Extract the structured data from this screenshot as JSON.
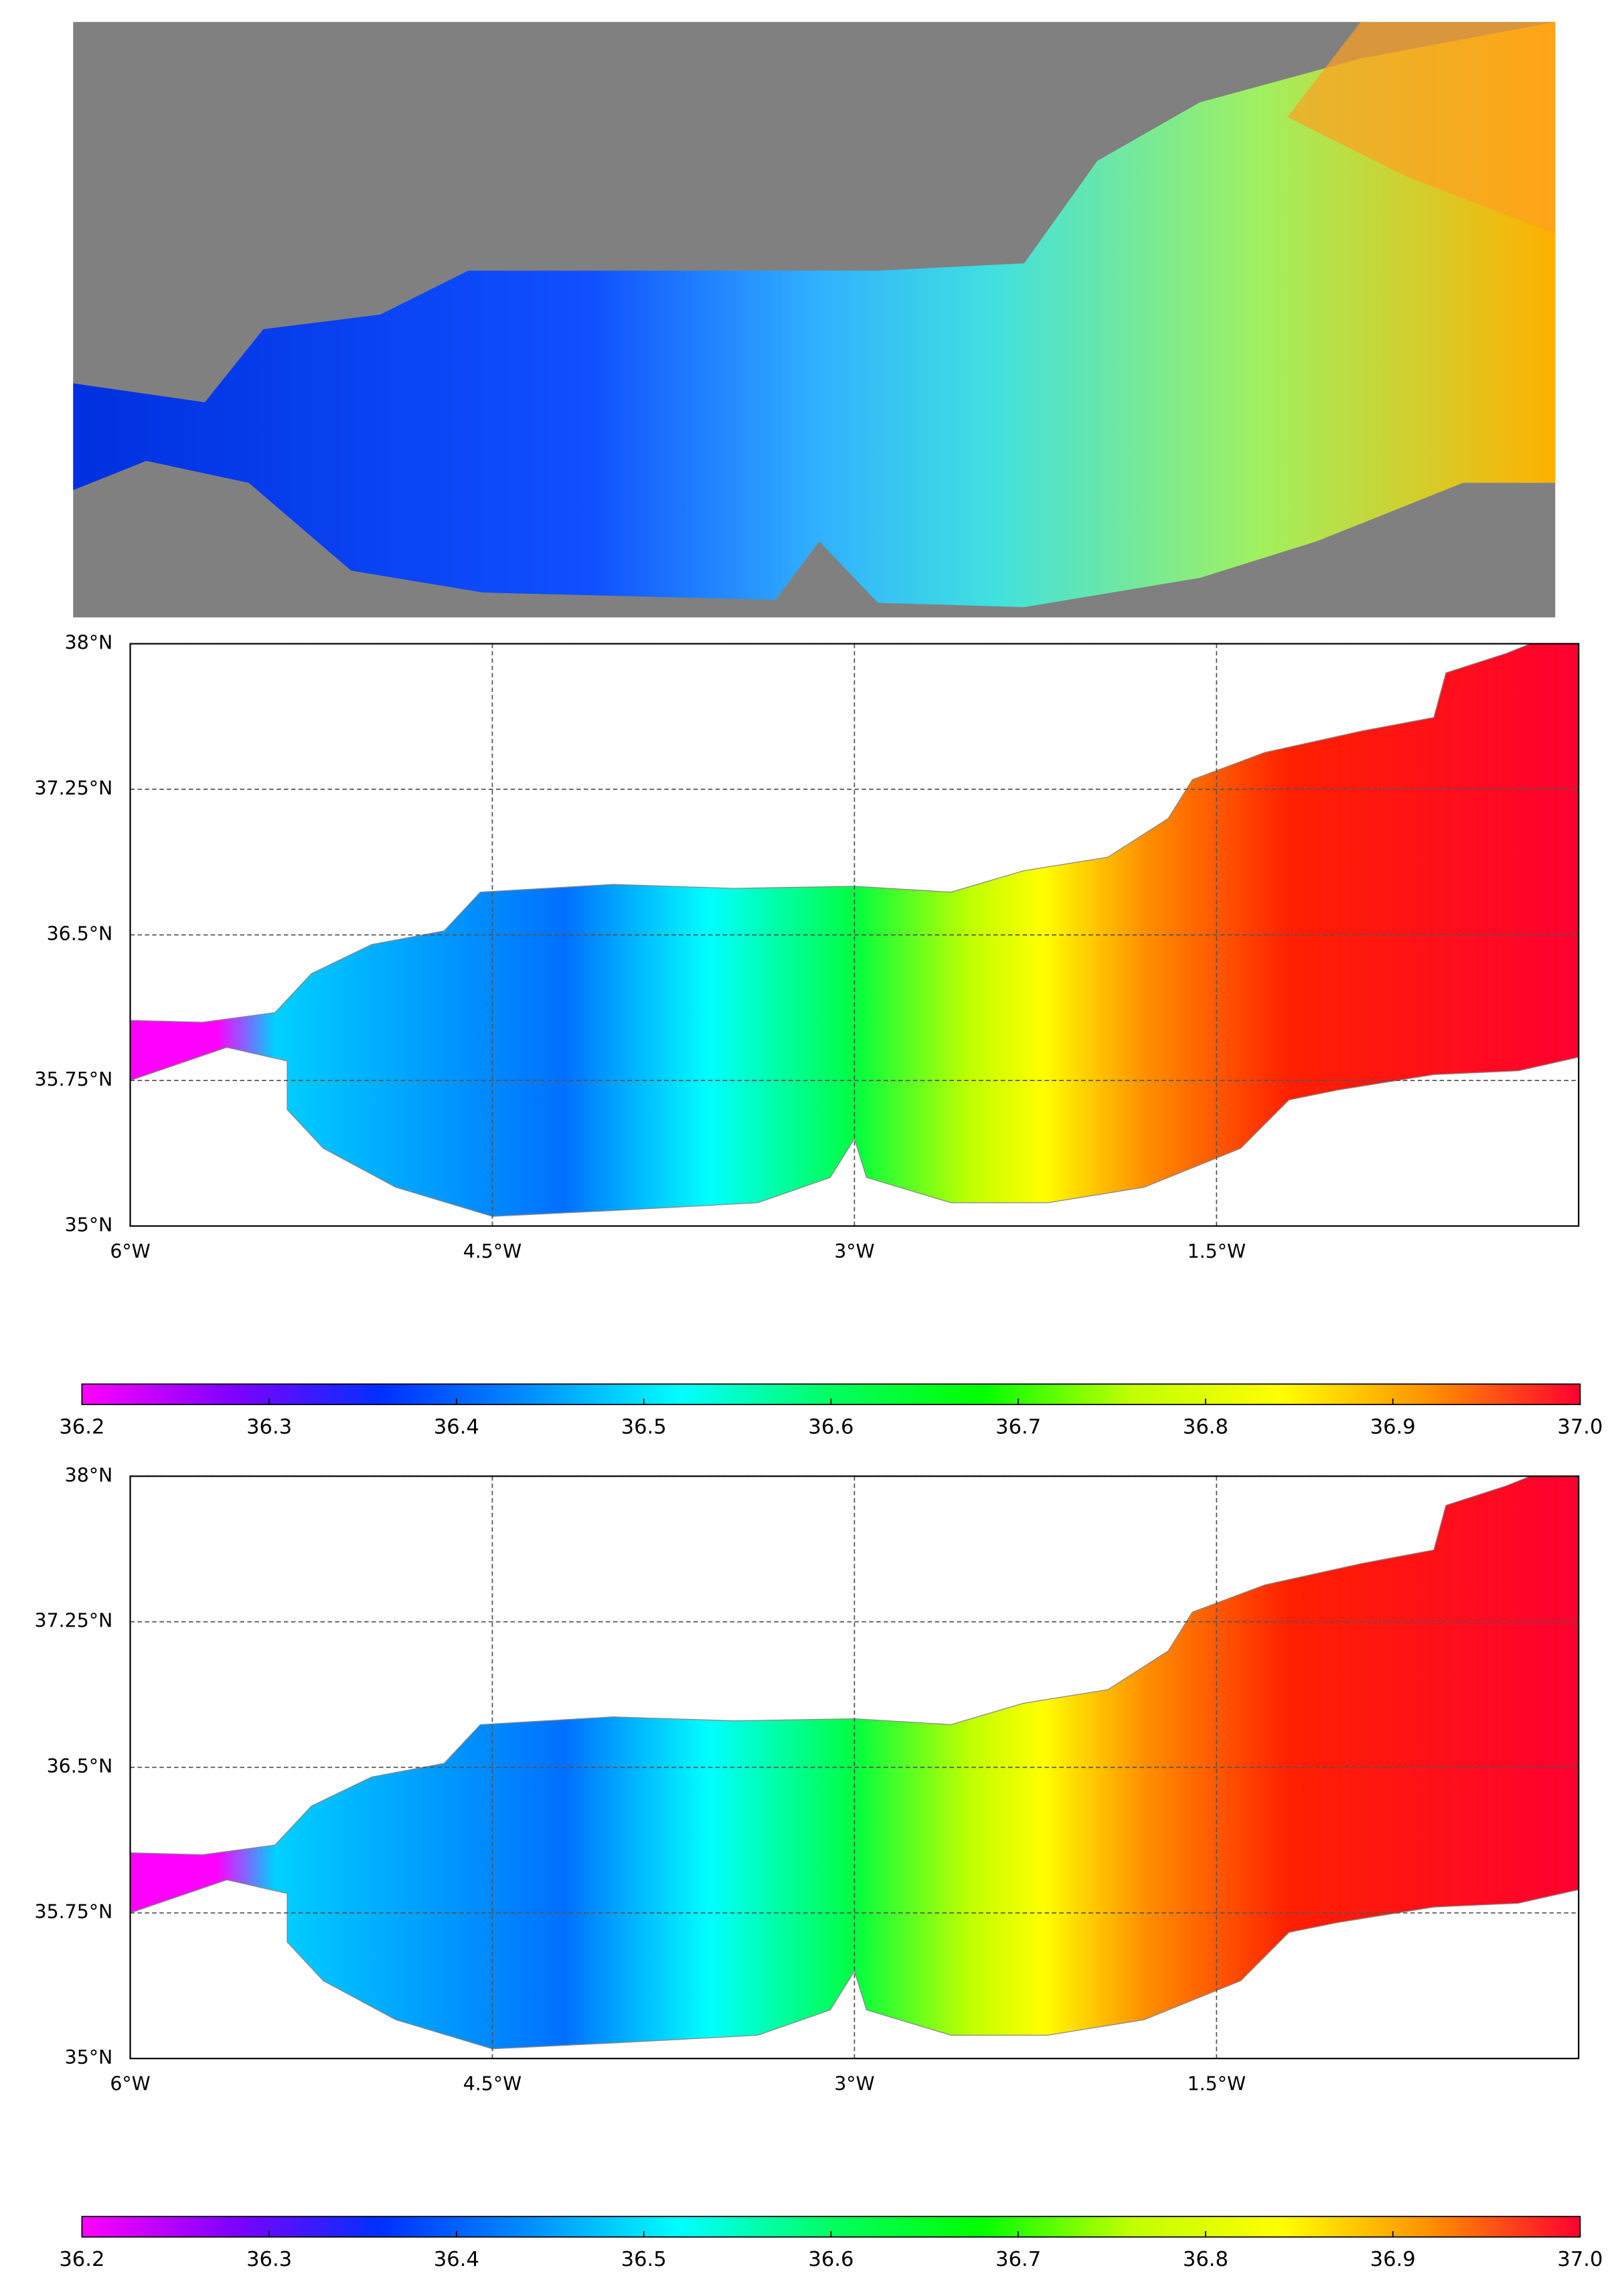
{
  "maps": [
    {
      "xlim": [
        -6,
        0
      ],
      "ylim": [
        35,
        38
      ],
      "xticks": [
        {
          "value": -6,
          "label": "6°W"
        },
        {
          "value": -4.5,
          "label": "4.5°W"
        },
        {
          "value": -3,
          "label": "3°W"
        },
        {
          "value": -1.5,
          "label": "1.5°W"
        }
      ],
      "yticks": [
        {
          "value": 35,
          "label": "35°N"
        },
        {
          "value": 35.75,
          "label": "35.75°N"
        },
        {
          "value": 36.5,
          "label": "36.5°N"
        },
        {
          "value": 37.25,
          "label": "37.25°N"
        },
        {
          "value": 38,
          "label": "38°N"
        }
      ],
      "colorbar": {
        "lim": [
          36.2,
          37
        ],
        "ticks": [
          36.2,
          36.3,
          36.4,
          36.5,
          36.6,
          36.7,
          36.8,
          36.9,
          {
            "value": 37,
            "label": "37.0"
          }
        ],
        "colors": [
          "#ff00ff",
          "#8000ff",
          "#0030ff",
          "#0090ff",
          "#00ffff",
          "#00ff60",
          "#00ff00",
          "#c0ff00",
          "#ffff00",
          "#ff9000",
          "#ff0030"
        ]
      }
    },
    {
      "xlim": [
        -6,
        0
      ],
      "ylim": [
        35,
        38
      ],
      "xticks": [
        {
          "value": -6,
          "label": "6°W"
        },
        {
          "value": -4.5,
          "label": "4.5°W"
        },
        {
          "value": -3,
          "label": "3°W"
        },
        {
          "value": -1.5,
          "label": "1.5°W"
        }
      ],
      "yticks": [
        {
          "value": 35,
          "label": "35°N"
        },
        {
          "value": 35.75,
          "label": "35.75°N"
        },
        {
          "value": 36.5,
          "label": "36.5°N"
        },
        {
          "value": 37.25,
          "label": "37.25°N"
        },
        {
          "value": 38,
          "label": "38°N"
        }
      ],
      "colorbar": {
        "lim": [
          36.2,
          37
        ],
        "ticks": [
          36.2,
          36.3,
          36.4,
          36.5,
          36.6,
          36.7,
          36.8,
          36.9,
          {
            "value": 37,
            "label": "37.0"
          }
        ],
        "colors": [
          "#ff00ff",
          "#8000ff",
          "#0030ff",
          "#0090ff",
          "#00ffff",
          "#00ff60",
          "#00ff00",
          "#c0ff00",
          "#ffff00",
          "#ff9000",
          "#ff0030"
        ]
      }
    }
  ]
}
